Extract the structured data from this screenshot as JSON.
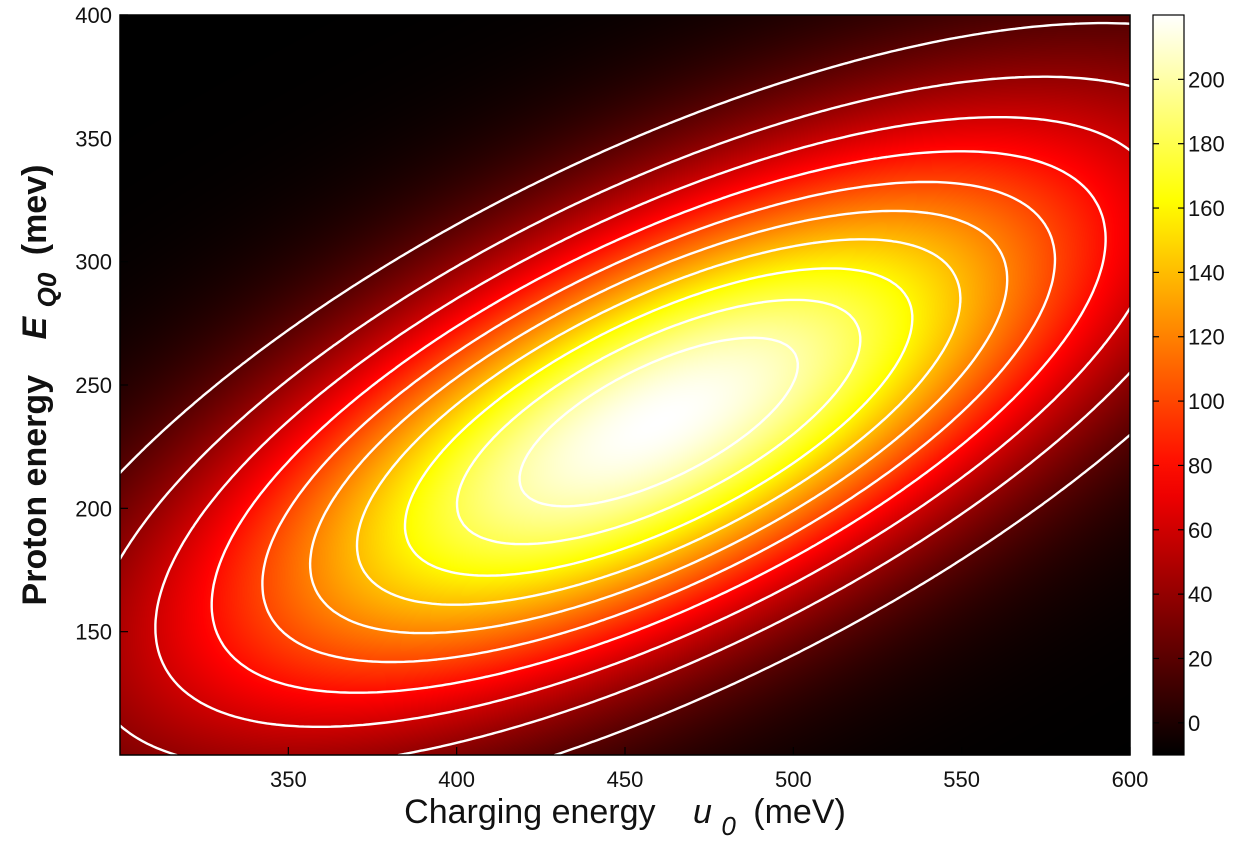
{
  "chart_data": {
    "type": "heatmap",
    "title": "",
    "xlabel": {
      "prefix": "Charging energy",
      "symbol": "u",
      "subscript": "0",
      "unit": "(meV)"
    },
    "ylabel": {
      "prefix": "Proton energy",
      "symbol": "E",
      "subscript": "Q0",
      "unit": "(mev)"
    },
    "xlim": [
      300,
      600
    ],
    "ylim": [
      100,
      400
    ],
    "x_ticks": [
      350,
      400,
      450,
      500,
      550,
      600
    ],
    "y_ticks": [
      150,
      200,
      250,
      300,
      350,
      400
    ],
    "colorbar": {
      "range": [
        -10,
        220
      ],
      "ticks": [
        0,
        20,
        40,
        60,
        80,
        100,
        120,
        140,
        160,
        180,
        200
      ],
      "colormap": "hot"
    },
    "peak": {
      "x": 460,
      "y": 235,
      "value": 220
    },
    "contour_levels": [
      20,
      40,
      60,
      80,
      100,
      120,
      140,
      160,
      180,
      200
    ],
    "contour_color": "#ffffff",
    "grid": false
  }
}
